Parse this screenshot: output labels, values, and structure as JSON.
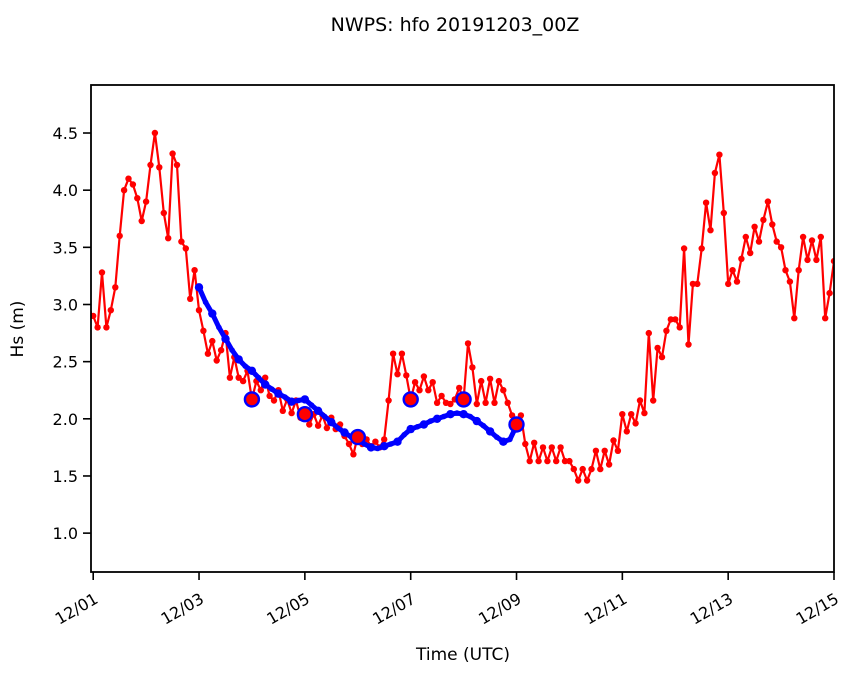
{
  "title": "NWPS: hfo 20191203_00Z",
  "chart_data": {
    "type": "line",
    "title": "NWPS: hfo 20191203_00Z",
    "xlabel": "Time (UTC)",
    "ylabel": "Hs (m)",
    "x_unit": "hours since 12/01 00:00 UTC",
    "xlim": [
      -1,
      336
    ],
    "ylim": [
      0.66,
      4.92
    ],
    "grid": false,
    "legend": "none",
    "background_color": "#ffffff",
    "axis_color": "#000000",
    "xticks": [
      {
        "t": 0,
        "label": "12/01"
      },
      {
        "t": 48,
        "label": "12/03"
      },
      {
        "t": 96,
        "label": "12/05"
      },
      {
        "t": 144,
        "label": "12/07"
      },
      {
        "t": 192,
        "label": "12/09"
      },
      {
        "t": 240,
        "label": "12/11"
      },
      {
        "t": 288,
        "label": "12/13"
      },
      {
        "t": 336,
        "label": "12/15"
      }
    ],
    "yticks": [
      {
        "v": 1.0,
        "label": "1.0"
      },
      {
        "v": 1.5,
        "label": "1.5"
      },
      {
        "v": 2.0,
        "label": "2.0"
      },
      {
        "v": 2.5,
        "label": "2.5"
      },
      {
        "v": 3.0,
        "label": "3.0"
      },
      {
        "v": 3.5,
        "label": "3.5"
      },
      {
        "v": 4.0,
        "label": "4.0"
      },
      {
        "v": 4.5,
        "label": "4.5"
      }
    ],
    "series": [
      {
        "name": "observations",
        "color": "#ff0000",
        "style": "line-with-dots",
        "t_start": -2,
        "t_step": 2,
        "values": [
          2.93,
          2.9,
          2.8,
          3.28,
          2.8,
          2.95,
          3.15,
          3.6,
          4.0,
          4.1,
          4.05,
          3.93,
          3.73,
          3.9,
          4.22,
          4.5,
          4.2,
          3.8,
          3.58,
          4.32,
          4.22,
          3.55,
          3.49,
          3.05,
          3.3,
          2.95,
          2.77,
          2.57,
          2.68,
          2.51,
          2.6,
          2.75,
          2.36,
          2.54,
          2.36,
          2.33,
          2.42,
          2.17,
          2.33,
          2.25,
          2.36,
          2.2,
          2.16,
          2.25,
          2.07,
          2.17,
          2.05,
          2.16,
          2.01,
          2.04,
          1.95,
          2.04,
          1.94,
          2.03,
          1.92,
          2.01,
          1.91,
          1.95,
          1.85,
          1.78,
          1.69,
          1.85,
          1.78,
          1.82,
          1.76,
          1.8,
          1.75,
          1.82,
          2.16,
          2.57,
          2.39,
          2.57,
          2.38,
          2.17,
          2.32,
          2.25,
          2.37,
          2.25,
          2.32,
          2.14,
          2.2,
          2.14,
          2.13,
          2.17,
          2.27,
          2.17,
          2.66,
          2.45,
          2.13,
          2.33,
          2.14,
          2.35,
          2.14,
          2.33,
          2.25,
          2.14,
          2.03,
          1.95,
          2.03,
          1.78,
          1.63,
          1.79,
          1.63,
          1.75,
          1.63,
          1.75,
          1.63,
          1.75,
          1.63,
          1.63,
          1.56,
          1.46,
          1.56,
          1.46,
          1.56,
          1.72,
          1.56,
          1.72,
          1.6,
          1.81,
          1.72,
          2.04,
          1.89,
          2.04,
          1.96,
          2.16,
          2.05,
          2.75,
          2.16,
          2.62,
          2.54,
          2.77,
          2.87,
          2.87,
          2.8,
          3.49,
          2.65,
          3.18,
          3.18,
          3.49,
          3.89,
          3.65,
          4.15,
          4.31,
          3.8,
          3.18,
          3.3,
          3.2,
          3.4,
          3.59,
          3.45,
          3.68,
          3.55,
          3.74,
          3.9,
          3.7,
          3.55,
          3.5,
          3.3,
          3.2,
          2.88,
          3.3,
          3.59,
          3.39,
          3.56,
          3.39,
          3.59,
          2.88,
          3.1,
          3.38
        ]
      },
      {
        "name": "model-forecast",
        "color": "#0000ff",
        "style": "thick-line-with-dots",
        "t_start": 48,
        "t_step": 3,
        "values": [
          3.15,
          3.02,
          2.92,
          2.8,
          2.7,
          2.6,
          2.52,
          2.46,
          2.42,
          2.36,
          2.3,
          2.26,
          2.22,
          2.19,
          2.15,
          2.16,
          2.17,
          2.12,
          2.07,
          2.02,
          1.97,
          1.92,
          1.88,
          1.84,
          1.82,
          1.78,
          1.75,
          1.74,
          1.76,
          1.78,
          1.8,
          1.86,
          1.91,
          1.93,
          1.95,
          1.98,
          2.0,
          2.02,
          2.04,
          2.05,
          2.04,
          2.02,
          1.98,
          1.94,
          1.89,
          1.84,
          1.8,
          1.82,
          1.94
        ]
      },
      {
        "name": "matched-daily-points",
        "style": "ring-markers",
        "fill_color": "#ff0000",
        "edge_color": "#0000ff",
        "points": [
          {
            "t": 72,
            "v": 2.17
          },
          {
            "t": 96,
            "v": 2.04
          },
          {
            "t": 120,
            "v": 1.84
          },
          {
            "t": 144,
            "v": 2.17
          },
          {
            "t": 168,
            "v": 2.17
          },
          {
            "t": 192,
            "v": 1.95
          }
        ]
      }
    ]
  }
}
